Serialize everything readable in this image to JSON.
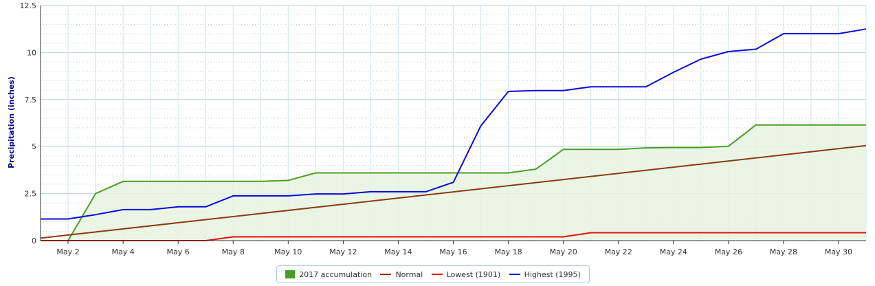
{
  "chart_data": {
    "type": "line",
    "title": "",
    "xlabel": "",
    "ylabel": "Precipitation (inches)",
    "xlim": [
      "May 1",
      "May 31"
    ],
    "ylim": [
      0,
      12.5
    ],
    "grid": true,
    "legend_position": "bottom",
    "y_ticks": [
      "0",
      "2.5",
      "5",
      "7.5",
      "10",
      "12.5"
    ],
    "x_tick_labels": [
      "May 2",
      "May 4",
      "May 6",
      "May 8",
      "May 10",
      "May 12",
      "May 14",
      "May 16",
      "May 18",
      "May 20",
      "May 22",
      "May 24",
      "May 26",
      "May 28",
      "May 30"
    ],
    "x_tick_days": [
      2,
      4,
      6,
      8,
      10,
      12,
      14,
      16,
      18,
      20,
      22,
      24,
      26,
      28,
      30
    ],
    "series": [
      {
        "name": "2017 accumulation",
        "kind": "area",
        "color": "#4a9e23",
        "fill": "#e8f3e0",
        "x": [
          1,
          2,
          3,
          4,
          5,
          6,
          7,
          8,
          9,
          10,
          11,
          12,
          13,
          14,
          15,
          16,
          17,
          18,
          19,
          20,
          21,
          22,
          23,
          24,
          25,
          26,
          27,
          28,
          29,
          30,
          31
        ],
        "values": [
          0.0,
          0.0,
          2.5,
          3.15,
          3.15,
          3.15,
          3.15,
          3.15,
          3.15,
          3.2,
          3.6,
          3.6,
          3.6,
          3.6,
          3.6,
          3.6,
          3.6,
          3.6,
          3.8,
          4.85,
          4.85,
          4.85,
          4.93,
          4.95,
          4.95,
          5.02,
          6.15,
          6.15,
          6.15,
          6.15,
          6.15
        ]
      },
      {
        "name": "Normal",
        "kind": "line",
        "color": "#8b3a0f",
        "x": [
          1,
          31
        ],
        "values": [
          0.13,
          5.05
        ]
      },
      {
        "name": "Lowest (1901)",
        "kind": "line",
        "color": "#e0100c",
        "x": [
          1,
          2,
          3,
          4,
          5,
          6,
          7,
          8,
          9,
          10,
          11,
          12,
          13,
          14,
          15,
          16,
          17,
          18,
          19,
          20,
          21,
          22,
          23,
          24,
          25,
          26,
          27,
          28,
          29,
          30,
          31
        ],
        "values": [
          0,
          0,
          0,
          0,
          0,
          0,
          0,
          0.2,
          0.2,
          0.2,
          0.2,
          0.2,
          0.2,
          0.2,
          0.2,
          0.2,
          0.2,
          0.2,
          0.2,
          0.2,
          0.42,
          0.42,
          0.42,
          0.42,
          0.42,
          0.42,
          0.42,
          0.42,
          0.42,
          0.42,
          0.42
        ]
      },
      {
        "name": "Highest (1995)",
        "kind": "line",
        "color": "#0a0ad8",
        "x": [
          1,
          2,
          3,
          4,
          5,
          6,
          7,
          8,
          9,
          10,
          11,
          12,
          13,
          14,
          15,
          16,
          17,
          18,
          19,
          20,
          21,
          22,
          23,
          24,
          25,
          26,
          27,
          28,
          29,
          30,
          31
        ],
        "values": [
          1.15,
          1.15,
          1.38,
          1.65,
          1.65,
          1.8,
          1.8,
          2.38,
          2.38,
          2.38,
          2.48,
          2.48,
          2.6,
          2.6,
          2.6,
          3.1,
          6.1,
          7.93,
          7.98,
          7.98,
          8.18,
          8.18,
          8.18,
          8.95,
          9.65,
          10.05,
          10.18,
          11.0,
          11.0,
          11.0,
          11.25
        ]
      }
    ]
  }
}
